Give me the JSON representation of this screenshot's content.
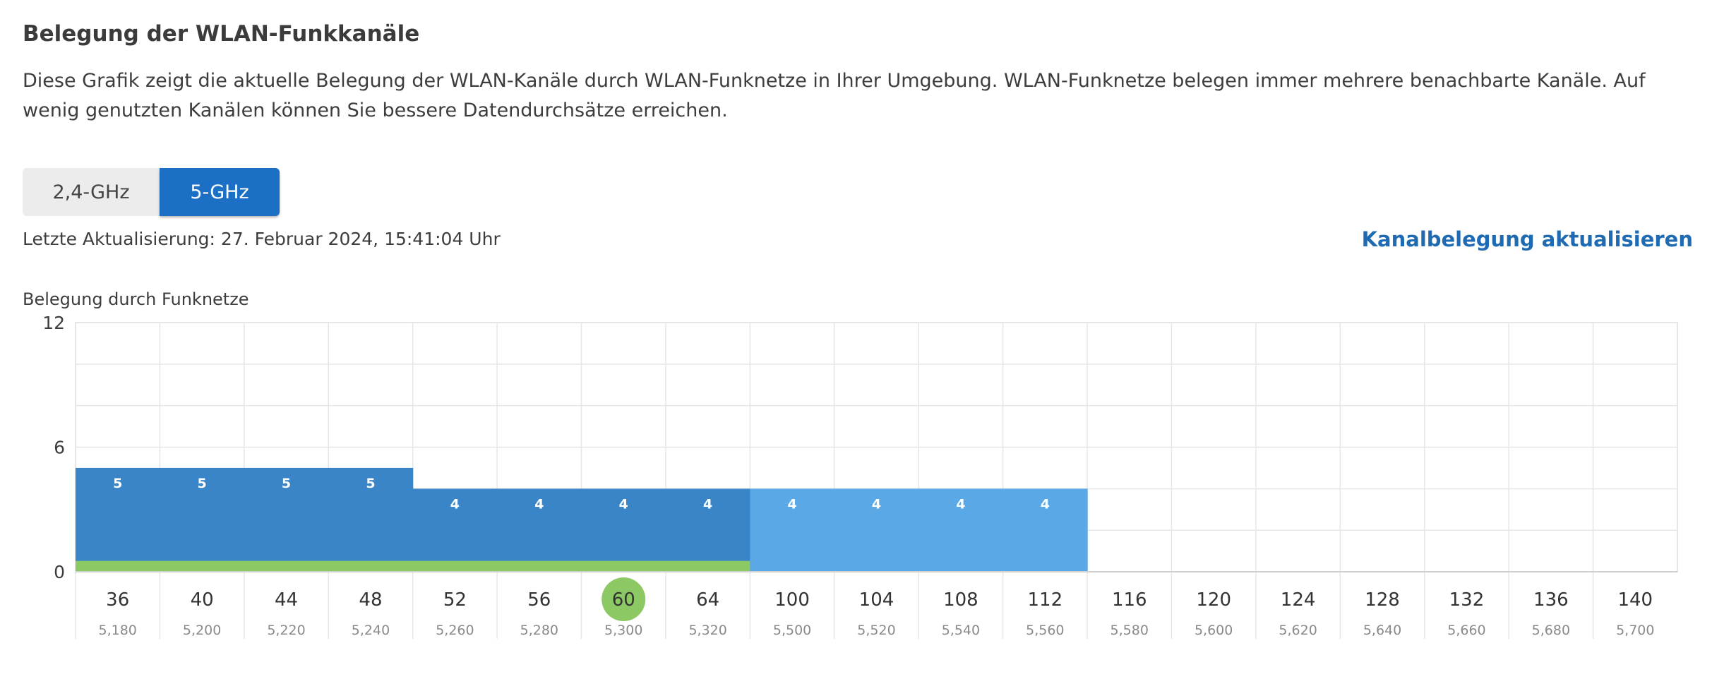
{
  "title": "Belegung der WLAN-Funkkanäle",
  "description": "Diese Grafik zeigt die aktuelle Belegung der WLAN-Kanäle durch WLAN-Funknetze in Ihrer Umgebung. WLAN-Funknetze belegen immer mehrere benachbarte Kanäle. Auf wenig genutzten Kanälen können Sie bessere Datendurchsätze erreichen.",
  "tabs": [
    {
      "label": "2,4-GHz",
      "active": false
    },
    {
      "label": "5-GHz",
      "active": true
    }
  ],
  "last_update": "Letzte Aktualisierung: 27. Februar 2024, 15:41:04 Uhr",
  "refresh_link": "Kanalbelegung aktualisieren",
  "chart_title": "Belegung durch Funknetze",
  "colors": {
    "dark_blue": "#3a85c7",
    "light_blue": "#5aa8e6",
    "green": "#8cc864",
    "grid": "#e6e6e6"
  },
  "chart_data": {
    "type": "bar",
    "title": "Belegung durch Funknetze",
    "ylim": [
      0,
      12
    ],
    "yticks": [
      0,
      6,
      12
    ],
    "grid": true,
    "categories": [
      "36",
      "40",
      "44",
      "48",
      "52",
      "56",
      "60",
      "64",
      "100",
      "104",
      "108",
      "112",
      "116",
      "120",
      "124",
      "128",
      "132",
      "136",
      "140"
    ],
    "frequencies": [
      "5,180",
      "5,200",
      "5,220",
      "5,240",
      "5,260",
      "5,280",
      "5,300",
      "5,320",
      "5,500",
      "5,520",
      "5,540",
      "5,560",
      "5,580",
      "5,600",
      "5,620",
      "5,640",
      "5,660",
      "5,680",
      "5,700"
    ],
    "values": [
      5,
      5,
      5,
      5,
      4,
      4,
      4,
      4,
      4,
      4,
      4,
      4,
      0,
      0,
      0,
      0,
      0,
      0,
      0
    ],
    "own_network_channels": [
      "36",
      "40",
      "44",
      "48",
      "52",
      "56",
      "60",
      "64"
    ],
    "own_network_level": 1,
    "own_channel": "60",
    "bar_colors": [
      "dark_blue",
      "dark_blue",
      "dark_blue",
      "dark_blue",
      "dark_blue",
      "dark_blue",
      "dark_blue",
      "dark_blue",
      "light_blue",
      "light_blue",
      "light_blue",
      "light_blue",
      "light_blue",
      "light_blue",
      "light_blue",
      "light_blue",
      "light_blue",
      "light_blue",
      "light_blue"
    ]
  }
}
